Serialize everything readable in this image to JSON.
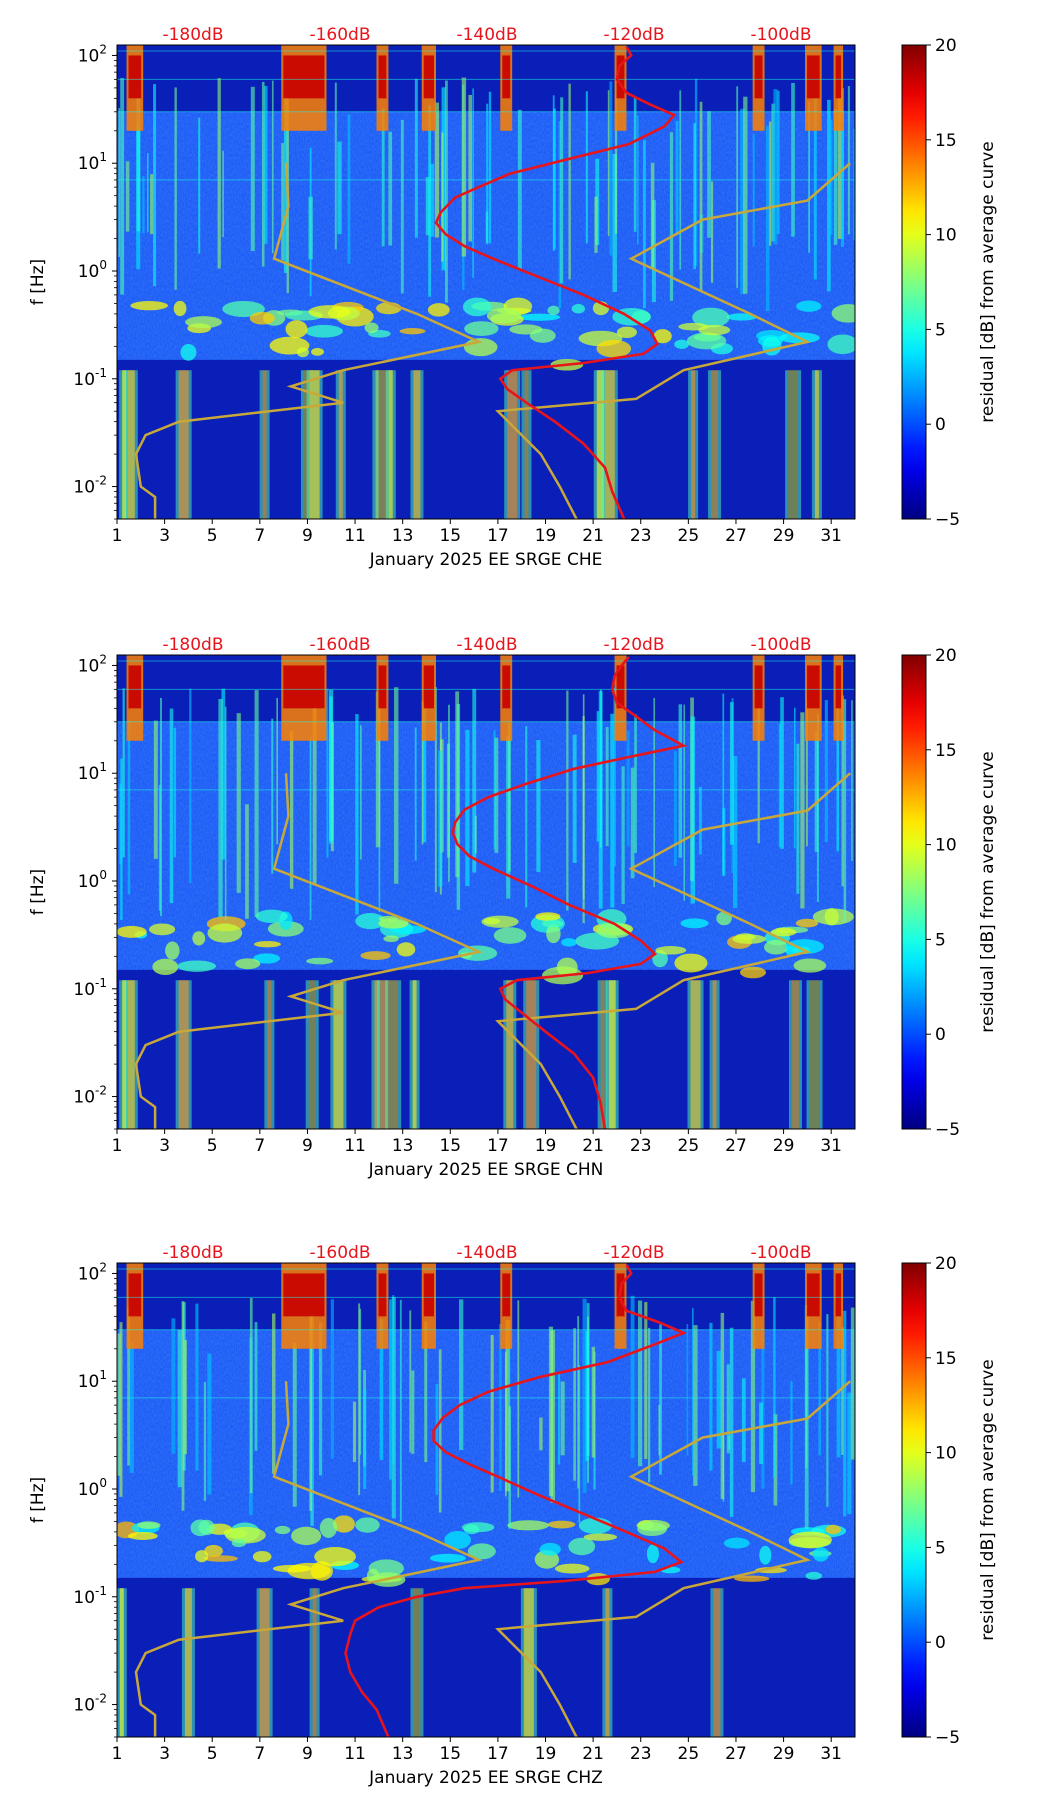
{
  "chart_data": [
    {
      "type": "heatmap",
      "xlabel": "January 2025 EE SRGE  CHE",
      "ylabel": "f [Hz]",
      "x_ticks": [
        "1",
        "3",
        "5",
        "7",
        "9",
        "11",
        "13",
        "15",
        "17",
        "19",
        "21",
        "23",
        "25",
        "27",
        "29",
        "31"
      ],
      "x_range": [
        1,
        32
      ],
      "y_ticks": [
        "10^-2",
        "10^-1",
        "10^0",
        "10^1",
        "10^2"
      ],
      "y_range_hz": [
        0.005,
        125
      ],
      "y_scale": "log",
      "top_axis_labels": [
        "-180dB",
        "-160dB",
        "-140dB",
        "-120dB",
        "-100dB"
      ],
      "colorbar": {
        "label": "residual [dB] from average curve",
        "ticks": [
          "20",
          "15",
          "10",
          "5",
          "0",
          "−5"
        ],
        "range": [
          -5,
          20
        ],
        "colormap": "jet"
      },
      "red_curve_color": "#e8141c",
      "gold_curve_color": "#c9a83a"
    },
    {
      "type": "heatmap",
      "xlabel": "January 2025 EE SRGE  CHN",
      "ylabel": "f [Hz]",
      "x_ticks": [
        "1",
        "3",
        "5",
        "7",
        "9",
        "11",
        "13",
        "15",
        "17",
        "19",
        "21",
        "23",
        "25",
        "27",
        "29",
        "31"
      ],
      "x_range": [
        1,
        32
      ],
      "y_ticks": [
        "10^-2",
        "10^-1",
        "10^0",
        "10^1",
        "10^2"
      ],
      "y_range_hz": [
        0.005,
        125
      ],
      "y_scale": "log",
      "top_axis_labels": [
        "-180dB",
        "-160dB",
        "-140dB",
        "-120dB",
        "-100dB"
      ],
      "colorbar": {
        "label": "residual [dB] from average curve",
        "ticks": [
          "20",
          "15",
          "10",
          "5",
          "0",
          "−5"
        ],
        "range": [
          -5,
          20
        ],
        "colormap": "jet"
      },
      "red_curve_color": "#e8141c",
      "gold_curve_color": "#c9a83a"
    },
    {
      "type": "heatmap",
      "xlabel": "January 2025 EE SRGE  CHZ",
      "ylabel": "f [Hz]",
      "x_ticks": [
        "1",
        "3",
        "5",
        "7",
        "9",
        "11",
        "13",
        "15",
        "17",
        "19",
        "21",
        "23",
        "25",
        "27",
        "29",
        "31"
      ],
      "x_range": [
        1,
        32
      ],
      "y_ticks": [
        "10^-2",
        "10^-1",
        "10^0",
        "10^1",
        "10^2"
      ],
      "y_range_hz": [
        0.005,
        125
      ],
      "y_scale": "log",
      "top_axis_labels": [
        "-180dB",
        "-160dB",
        "-140dB",
        "-120dB",
        "-100dB"
      ],
      "colorbar": {
        "label": "residual [dB] from average curve",
        "ticks": [
          "20",
          "15",
          "10",
          "5",
          "0",
          "−5"
        ],
        "range": [
          -5,
          20
        ],
        "colormap": "jet"
      },
      "red_curve_color": "#e8141c",
      "gold_curve_color": "#c9a83a"
    }
  ]
}
